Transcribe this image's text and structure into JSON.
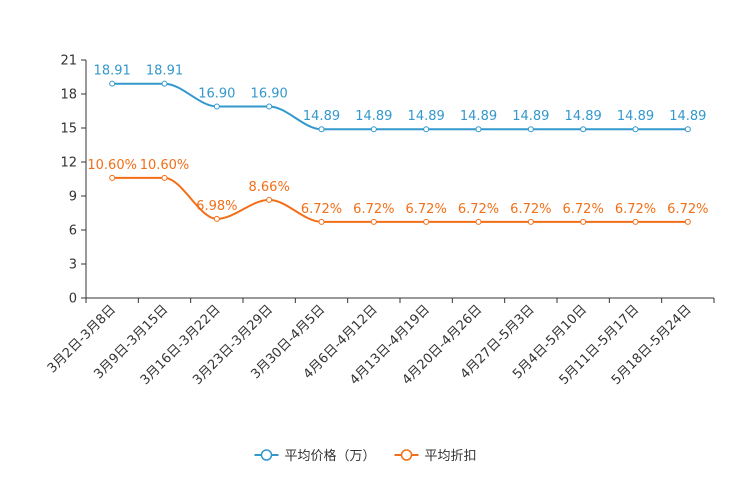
{
  "chart_data": {
    "type": "line",
    "title": "",
    "xlabel": "",
    "ylabel": "",
    "ylim": [
      0,
      21
    ],
    "yticks": [
      0,
      3,
      6,
      9,
      12,
      15,
      18,
      21
    ],
    "grid": false,
    "legend_position": "bottom-center",
    "categories": [
      "3月2日-3月8日",
      "3月9日-3月15日",
      "3月16日-3月22日",
      "3月23日-3月29日",
      "3月30日-4月5日",
      "4月6日-4月12日",
      "4月13日-4月19日",
      "4月20日-4月26日",
      "4月27日-5月3日",
      "5月4日-5月10日",
      "5月11日-5月17日",
      "5月18日-5月24日"
    ],
    "series": [
      {
        "name": "平均价格（万）",
        "color": "#3398cc",
        "values": [
          18.91,
          18.91,
          16.9,
          16.9,
          14.89,
          14.89,
          14.89,
          14.89,
          14.89,
          14.89,
          14.89,
          14.89
        ],
        "labels": [
          "18.91",
          "18.91",
          "16.90",
          "16.90",
          "14.89",
          "14.89",
          "14.89",
          "14.89",
          "14.89",
          "14.89",
          "14.89",
          "14.89"
        ]
      },
      {
        "name": "平均折扣",
        "color": "#f26f18",
        "values": [
          10.6,
          10.6,
          6.98,
          8.66,
          6.72,
          6.72,
          6.72,
          6.72,
          6.72,
          6.72,
          6.72,
          6.72
        ],
        "labels": [
          "10.60%",
          "10.60%",
          "6.98%",
          "8.66%",
          "6.72%",
          "6.72%",
          "6.72%",
          "6.72%",
          "6.72%",
          "6.72%",
          "6.72%",
          "6.72%"
        ]
      }
    ]
  }
}
